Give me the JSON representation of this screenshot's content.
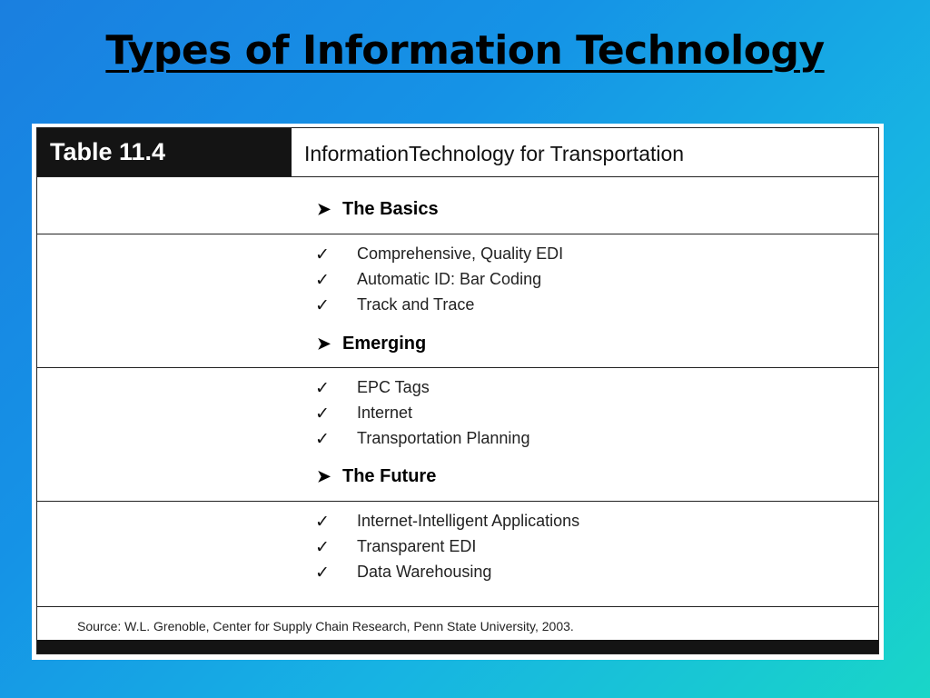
{
  "slide": {
    "title": "Types of Information Technology"
  },
  "table": {
    "number": "Table 11.4",
    "caption": "InformationTechnology for Transportation",
    "sections": [
      {
        "heading": "The Basics",
        "items": [
          "Comprehensive, Quality EDI",
          "Automatic ID: Bar Coding",
          "Track and Trace"
        ]
      },
      {
        "heading": "Emerging",
        "items": [
          "EPC Tags",
          "Internet",
          "Transportation Planning"
        ]
      },
      {
        "heading": "The Future",
        "items": [
          "Internet-Intelligent Applications",
          "Transparent EDI",
          "Data Warehousing"
        ]
      }
    ],
    "source": "Source: W.L. Grenoble, Center for Supply Chain Research, Penn State University, 2003.",
    "arrow_glyph": "➤",
    "check_glyph": "✓"
  }
}
